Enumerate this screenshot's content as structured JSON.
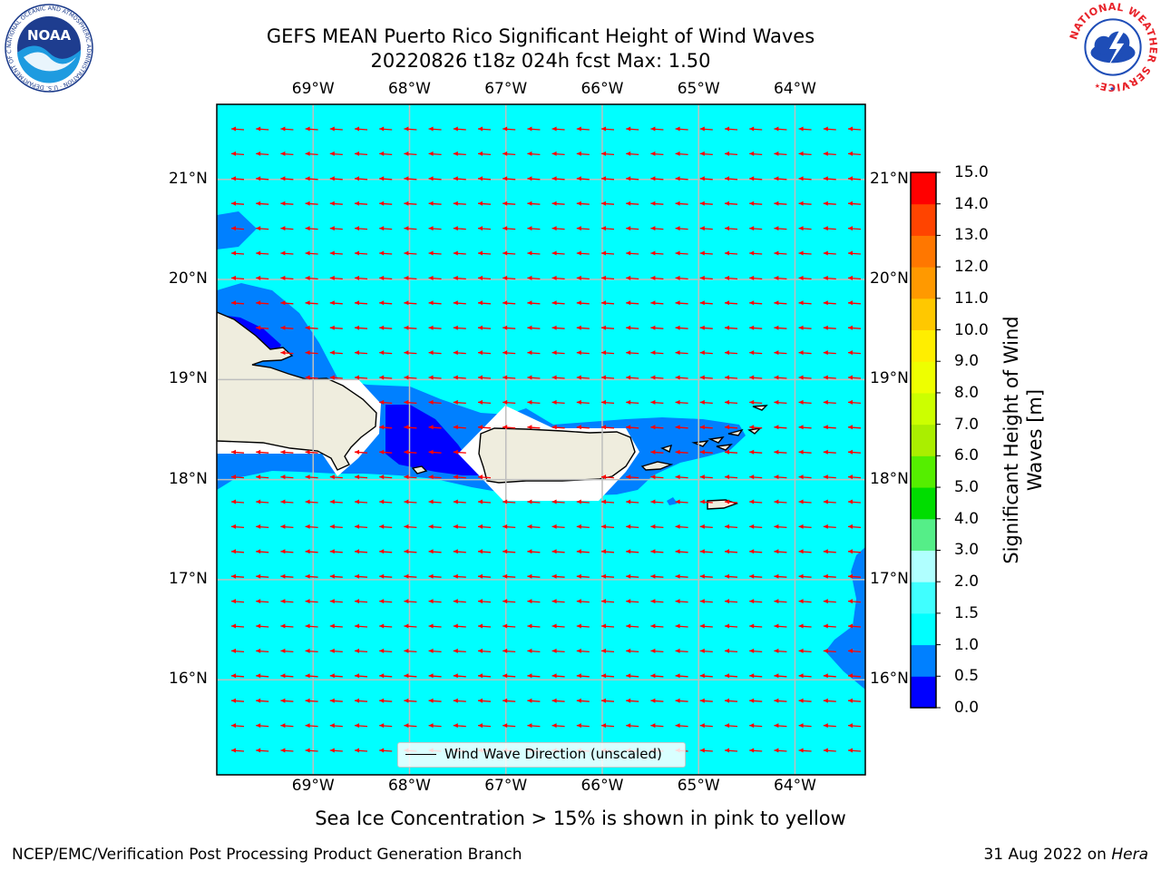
{
  "title_line1": "GEFS MEAN Puerto Rico Significant Height of Wind Waves",
  "title_line2": "20220826 t18z 024h fcst   Max: 1.50",
  "map": {
    "lon_ticks": [
      {
        "value": -69,
        "label": "69°W"
      },
      {
        "value": -68,
        "label": "68°W"
      },
      {
        "value": -67,
        "label": "67°W"
      },
      {
        "value": -66,
        "label": "66°W"
      },
      {
        "value": -65,
        "label": "65°W"
      },
      {
        "value": -64,
        "label": "64°W"
      }
    ],
    "lat_ticks": [
      {
        "value": 21,
        "label": "21°N"
      },
      {
        "value": 20,
        "label": "20°N"
      },
      {
        "value": 19,
        "label": "19°N"
      },
      {
        "value": 18,
        "label": "18°N"
      },
      {
        "value": 17,
        "label": "17°N"
      },
      {
        "value": 16,
        "label": "16°N"
      }
    ],
    "lon_range": [
      -70.0,
      -63.27
    ],
    "lat_range": [
      15.05,
      21.75
    ],
    "wind_wave_direction": "westward (from the east)",
    "colors": {
      "ocean": "#00ffff",
      "land": "#efedde",
      "coast": "#000000",
      "no_data": "#ffffff",
      "arrow": "#ff0000",
      "grid": "#bebebe"
    }
  },
  "legend_label": "Wind Wave Direction (unscaled)",
  "colorbar": {
    "title": "Significant Height of Wind Waves [m]",
    "ticks": [
      "0.0",
      "0.5",
      "1.0",
      "1.5",
      "2.0",
      "3.0",
      "4.0",
      "5.0",
      "6.0",
      "7.0",
      "8.0",
      "9.0",
      "10.0",
      "11.0",
      "12.0",
      "13.0",
      "14.0",
      "15.0"
    ],
    "colors": [
      "#0000ff",
      "#0080ff",
      "#00ffff",
      "#40ffff",
      "#b0ffff",
      "#55ee88",
      "#00dd00",
      "#55ee00",
      "#aaee00",
      "#ccff00",
      "#eeff00",
      "#ffee00",
      "#ffc800",
      "#ff9900",
      "#ff7700",
      "#ff4400",
      "#ff0000"
    ]
  },
  "sub_note": "Sea Ice Concentration > 15% is shown in pink to yellow",
  "footer_left": "NCEP/EMC/Verification Post Processing Product Generation Branch",
  "footer_date": "31 Aug 2022 on ",
  "footer_machine": "Hera",
  "logos": {
    "noaa_text": "NOAA",
    "noaa_ring_text": "NATIONAL OCEANIC AND ATMOSPHERIC ADMINISTRATION · U.S. DEPARTMENT OF COMMERCE ·",
    "nws_ring_text": "NATIONAL WEATHER SERVICE"
  }
}
